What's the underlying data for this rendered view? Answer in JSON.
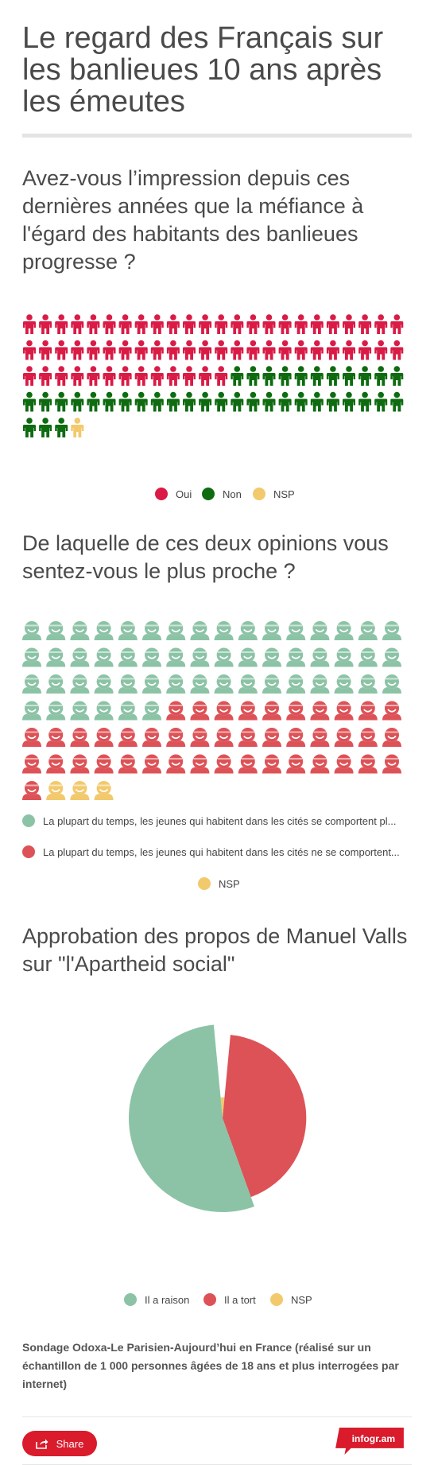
{
  "title": "Le regard des Français sur les banlieues 10 ans après les émeutes",
  "charts": {
    "q1": {
      "question": "Avez-vous l’impression depuis ces dernières années que la méfiance à l'égard des habitants des banlieues progresse ?",
      "legend": [
        {
          "label": "Oui",
          "color": "#d91b46"
        },
        {
          "label": "Non",
          "color": "#0e6b10"
        },
        {
          "label": "NSP",
          "color": "#f2c96c"
        }
      ]
    },
    "q2": {
      "question": "De laquelle de ces deux opinions vous sentez-vous le plus proche ?",
      "legend": [
        {
          "label": "La plupart du temps, les jeunes qui habitent dans les cités se comportent pl...",
          "color": "#8cc3a6"
        },
        {
          "label": "La plupart du temps, les jeunes qui habitent dans les cités ne se comportent...",
          "color": "#dd5257"
        },
        {
          "label": "NSP",
          "color": "#f2c96c"
        }
      ]
    },
    "q3": {
      "question": "Approbation des propos de Manuel Valls sur \"l'Apartheid social\"",
      "legend": [
        {
          "label": "Il a raison",
          "color": "#8cc3a6"
        },
        {
          "label": "Il a tort",
          "color": "#dd5257"
        },
        {
          "label": "NSP",
          "color": "#f2c96c"
        }
      ]
    }
  },
  "chart_data": [
    {
      "type": "pictogram",
      "icon": "person-icon",
      "units": "percent",
      "series": [
        {
          "name": "Oui",
          "value": 61,
          "color": "#d91b46"
        },
        {
          "name": "Non",
          "value": 38,
          "color": "#0e6b10"
        },
        {
          "name": "NSP",
          "value": 1,
          "color": "#f2c96c"
        }
      ]
    },
    {
      "type": "pictogram",
      "icon": "face-icon",
      "units": "percent",
      "series": [
        {
          "name": "La plupart du temps, les jeunes qui habitent dans les cités se comportent pl...",
          "value": 54,
          "color": "#8cc3a6"
        },
        {
          "name": "La plupart du temps, les jeunes qui habitent dans les cités ne se comportent...",
          "value": 43,
          "color": "#dd5257"
        },
        {
          "name": "NSP",
          "value": 3,
          "color": "#f2c96c"
        }
      ]
    },
    {
      "type": "pie",
      "variant": "polar-area",
      "series": [
        {
          "name": "Il a raison",
          "value": 54,
          "color": "#8cc3a6"
        },
        {
          "name": "Il a tort",
          "value": 43,
          "color": "#dd5257"
        },
        {
          "name": "NSP",
          "value": 3,
          "color": "#f2c96c"
        }
      ]
    }
  ],
  "footer": {
    "source": "Sondage Odoxa-Le Parisien-Aujourd’hui en France (réalisé sur un échantillon de 1 000 personnes âgées de 18 ans et plus interrogées par internet)",
    "share_label": "Share",
    "brand": "infogr.am",
    "brand_color": "#d91b2c"
  }
}
